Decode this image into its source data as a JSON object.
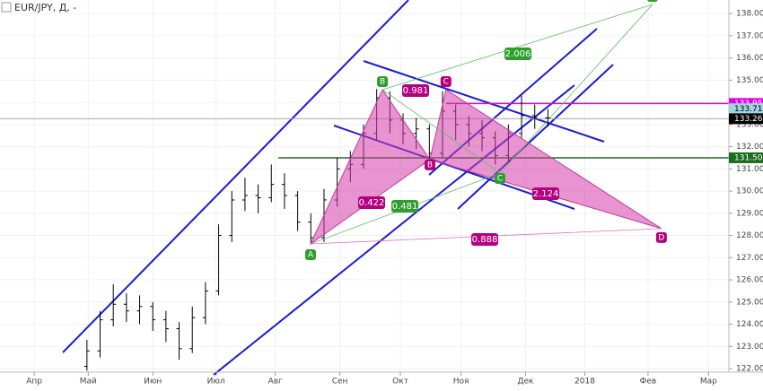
{
  "chart_data": {
    "type": "ohlc",
    "title": "EUR/JPY, Д, -",
    "xlim": [
      -13,
      263.7
    ],
    "ylim": [
      121.84,
      138.61
    ],
    "xticks": [
      {
        "value": 0,
        "label": "Апр"
      },
      {
        "value": 20.5,
        "label": "Май"
      },
      {
        "value": 45,
        "label": "Июн"
      },
      {
        "value": 69,
        "label": "Июл"
      },
      {
        "value": 91.5,
        "label": "Авг"
      },
      {
        "value": 116,
        "label": "Сен"
      },
      {
        "value": 139,
        "label": "Окт"
      },
      {
        "value": 162,
        "label": "Ноя"
      },
      {
        "value": 186.5,
        "label": "Дек"
      },
      {
        "value": 209,
        "label": "2018"
      },
      {
        "value": 233,
        "label": "Фев"
      },
      {
        "value": 256,
        "label": "Мар"
      }
    ],
    "yticks": [
      {
        "value": 122,
        "label": "122.00"
      },
      {
        "value": 123,
        "label": "123.00"
      },
      {
        "value": 124,
        "label": "124.00"
      },
      {
        "value": 125,
        "label": "125.00"
      },
      {
        "value": 126,
        "label": "126.00"
      },
      {
        "value": 127,
        "label": "127.00"
      },
      {
        "value": 128,
        "label": "128.00"
      },
      {
        "value": 129,
        "label": "129.00"
      },
      {
        "value": 130,
        "label": "130.00"
      },
      {
        "value": 131,
        "label": "131.00"
      },
      {
        "value": 132,
        "label": "132.00"
      },
      {
        "value": 133,
        "label": "133.00"
      },
      {
        "value": 134,
        "label": "134.00"
      },
      {
        "value": 135,
        "label": "135.00"
      },
      {
        "value": 136,
        "label": "136.00"
      },
      {
        "value": 137,
        "label": "137.00"
      },
      {
        "value": 138,
        "label": "138.00"
      }
    ],
    "color": "#000000",
    "x": [
      20,
      25,
      30,
      35,
      40,
      45,
      50,
      55,
      60,
      65,
      70,
      75,
      80,
      85,
      90,
      95,
      100,
      105,
      110,
      115,
      120,
      125,
      130,
      135,
      140,
      145,
      150,
      155,
      160,
      165,
      170,
      175,
      180,
      185,
      190,
      195
    ],
    "open": [
      122.1,
      122.8,
      124.2,
      124.9,
      124.6,
      124.8,
      124.2,
      123.8,
      122.9,
      124.3,
      125.5,
      128.0,
      129.6,
      129.8,
      129.7,
      130.3,
      129.8,
      128.6,
      127.9,
      129.6,
      131.0,
      131.2,
      132.6,
      134.2,
      133.2,
      132.6,
      132.8,
      131.7,
      133.6,
      133.0,
      132.6,
      132.4,
      131.6,
      132.6,
      133.4,
      133.3
    ],
    "high": [
      123.3,
      124.6,
      125.8,
      125.4,
      125.3,
      125.0,
      124.6,
      124.1,
      124.8,
      125.9,
      128.5,
      130.0,
      130.6,
      130.3,
      131.2,
      130.8,
      130.0,
      129.0,
      130.1,
      131.5,
      131.8,
      133.0,
      134.6,
      134.5,
      133.5,
      133.3,
      133.0,
      134.5,
      133.9,
      133.4,
      133.2,
      132.7,
      133.0,
      134.3,
      133.9,
      133.7
    ],
    "low": [
      121.9,
      122.5,
      123.9,
      124.1,
      124.0,
      123.7,
      123.2,
      122.4,
      122.7,
      124.0,
      125.3,
      127.7,
      129.1,
      129.0,
      129.5,
      129.2,
      128.2,
      127.6,
      127.7,
      129.3,
      130.4,
      131.0,
      132.3,
      132.6,
      132.1,
      131.9,
      131.4,
      131.5,
      132.3,
      132.0,
      131.8,
      131.2,
      131.3,
      132.4,
      132.8,
      132.9
    ],
    "close": [
      122.8,
      124.2,
      124.9,
      124.6,
      124.8,
      124.2,
      123.8,
      122.9,
      124.3,
      125.5,
      128.0,
      129.6,
      129.8,
      129.7,
      130.3,
      129.8,
      128.6,
      127.9,
      129.6,
      131.0,
      131.2,
      132.6,
      134.2,
      133.2,
      132.6,
      132.8,
      131.7,
      133.6,
      133.0,
      132.6,
      132.4,
      131.6,
      132.6,
      133.4,
      133.3,
      133.3
    ],
    "price_labels": [
      {
        "value": 133.95,
        "label": "133.95",
        "color": "#e600e6"
      },
      {
        "value": 133.71,
        "label": "133.71",
        "color": "#9fd4e0"
      },
      {
        "value": 133.26,
        "label": "133.26",
        "color": "#000000"
      },
      {
        "value": 131.5,
        "label": "131.50",
        "color": "#1f6b1f"
      }
    ],
    "pattern_points": [
      {
        "label": "A",
        "x": 104.9,
        "price": 127.62,
        "color": "#2e9e2e"
      },
      {
        "label": "B",
        "x": 132.2,
        "price": 134.57,
        "color": "#2e9e2e"
      },
      {
        "label": "B",
        "x": 150.2,
        "price": 131.42,
        "color": "#b5007f"
      },
      {
        "label": "C",
        "x": 156.3,
        "price": 134.57,
        "color": "#b5007f"
      },
      {
        "label": "C",
        "x": 176.8,
        "price": 130.81,
        "color": "#2e9e2e"
      },
      {
        "label": "D",
        "x": 234.7,
        "price": 138.41,
        "color": "#2e9e2e"
      },
      {
        "label": "D",
        "x": 238.1,
        "price": 128.31,
        "color": "#b5007f"
      }
    ],
    "ratios": [
      {
        "value": 0.981,
        "color": "#b5007f"
      },
      {
        "value": 0.422,
        "color": "#b5007f"
      },
      {
        "value": 0.481,
        "color": "#2e9e2e"
      },
      {
        "value": 2.006,
        "color": "#2e9e2e"
      },
      {
        "value": 2.124,
        "color": "#b5007f"
      },
      {
        "value": 0.888,
        "color": "#b5007f"
      }
    ]
  }
}
